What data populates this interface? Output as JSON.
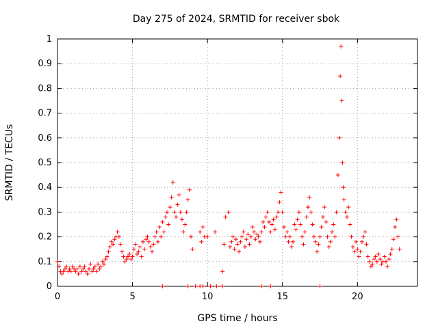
{
  "chart_data": {
    "type": "scatter",
    "title": "Day 275 of 2024, SRMTID for receiver sbok",
    "xlabel": "GPS time / hours",
    "ylabel": "SRMTID / TECUs",
    "xlim": [
      0,
      24
    ],
    "ylim": [
      0,
      1
    ],
    "xticks": [
      0,
      5,
      10,
      15,
      20
    ],
    "yticks": [
      0,
      0.1,
      0.2,
      0.3,
      0.4,
      0.5,
      0.6,
      0.7,
      0.8,
      0.9,
      1
    ],
    "ytick_labels": [
      "0",
      "0.1",
      "0.2",
      "0.3",
      "0.4",
      "0.5",
      "0.6",
      "0.7",
      "0.8",
      "0.9",
      "1"
    ],
    "grid": true,
    "marker": "+",
    "color": "#ff0000",
    "series": [
      {
        "name": "SRMTID",
        "x": [
          0.0,
          0.1,
          0.2,
          0.3,
          0.4,
          0.5,
          0.6,
          0.7,
          0.8,
          0.9,
          1.0,
          1.1,
          1.2,
          1.3,
          1.4,
          1.5,
          1.6,
          1.7,
          1.8,
          1.9,
          2.0,
          2.1,
          2.2,
          2.3,
          2.4,
          2.5,
          2.6,
          2.7,
          2.8,
          2.9,
          3.0,
          3.1,
          3.2,
          3.3,
          3.4,
          3.5,
          3.6,
          3.7,
          3.8,
          3.9,
          4.0,
          4.1,
          4.2,
          4.3,
          4.4,
          4.5,
          4.6,
          4.7,
          4.8,
          4.9,
          5.0,
          5.1,
          5.2,
          5.3,
          5.4,
          5.5,
          5.6,
          5.7,
          5.8,
          5.9,
          6.0,
          6.1,
          6.2,
          6.3,
          6.4,
          6.5,
          6.6,
          6.7,
          6.8,
          6.9,
          7.0,
          7.1,
          7.2,
          7.3,
          7.4,
          7.5,
          7.6,
          7.7,
          7.8,
          7.9,
          8.0,
          8.1,
          8.2,
          8.3,
          8.4,
          8.5,
          8.6,
          8.7,
          8.8,
          8.9,
          9.0,
          9.5,
          9.6,
          9.7,
          9.8,
          10.0,
          10.5,
          11.0,
          11.1,
          11.2,
          11.4,
          11.5,
          11.6,
          11.7,
          11.8,
          11.9,
          12.0,
          12.1,
          12.2,
          12.3,
          12.4,
          12.5,
          12.6,
          12.7,
          12.8,
          12.9,
          13.0,
          13.1,
          13.2,
          13.3,
          13.4,
          13.5,
          13.6,
          13.7,
          13.8,
          13.9,
          14.0,
          14.1,
          14.2,
          14.3,
          14.4,
          14.5,
          14.6,
          14.7,
          14.8,
          14.9,
          15.0,
          15.1,
          15.2,
          15.3,
          15.4,
          15.5,
          15.6,
          15.7,
          15.8,
          15.9,
          16.0,
          16.1,
          16.2,
          16.3,
          16.4,
          16.5,
          16.6,
          16.7,
          16.8,
          16.9,
          17.0,
          17.1,
          17.2,
          17.3,
          17.4,
          17.5,
          17.6,
          17.7,
          17.8,
          17.9,
          18.0,
          18.1,
          18.2,
          18.3,
          18.4,
          18.5,
          18.6,
          18.7,
          18.8,
          18.85,
          18.9,
          18.95,
          19.0,
          19.05,
          19.1,
          19.2,
          19.3,
          19.4,
          19.5,
          19.6,
          19.7,
          19.8,
          19.9,
          20.0,
          20.1,
          20.2,
          20.3,
          20.4,
          20.5,
          20.6,
          20.7,
          20.8,
          20.9,
          21.0,
          21.1,
          21.2,
          21.3,
          21.4,
          21.5,
          21.6,
          21.7,
          21.8,
          21.9,
          22.0,
          22.1,
          22.2,
          22.3,
          22.4,
          22.5,
          22.6,
          22.7,
          22.8,
          7.0,
          8.7,
          9.2,
          9.5,
          9.7,
          10.2,
          10.6,
          11.0,
          13.6,
          14.2,
          17.5
        ],
        "y": [
          0.1,
          0.08,
          0.06,
          0.05,
          0.06,
          0.07,
          0.08,
          0.06,
          0.07,
          0.06,
          0.08,
          0.07,
          0.06,
          0.07,
          0.05,
          0.08,
          0.06,
          0.07,
          0.08,
          0.06,
          0.05,
          0.07,
          0.09,
          0.06,
          0.07,
          0.08,
          0.06,
          0.09,
          0.07,
          0.08,
          0.1,
          0.09,
          0.11,
          0.12,
          0.14,
          0.16,
          0.18,
          0.17,
          0.19,
          0.2,
          0.22,
          0.2,
          0.17,
          0.14,
          0.12,
          0.1,
          0.11,
          0.12,
          0.13,
          0.11,
          0.12,
          0.15,
          0.17,
          0.13,
          0.14,
          0.16,
          0.12,
          0.18,
          0.15,
          0.19,
          0.2,
          0.18,
          0.16,
          0.14,
          0.17,
          0.2,
          0.22,
          0.18,
          0.24,
          0.2,
          0.26,
          0.22,
          0.28,
          0.3,
          0.25,
          0.32,
          0.36,
          0.42,
          0.3,
          0.28,
          0.33,
          0.37,
          0.3,
          0.27,
          0.22,
          0.25,
          0.3,
          0.35,
          0.39,
          0.2,
          0.15,
          0.22,
          0.18,
          0.24,
          0.2,
          0.2,
          0.22,
          0.06,
          0.17,
          0.28,
          0.3,
          0.16,
          0.18,
          0.2,
          0.15,
          0.19,
          0.17,
          0.14,
          0.18,
          0.2,
          0.22,
          0.16,
          0.19,
          0.21,
          0.17,
          0.2,
          0.24,
          0.22,
          0.19,
          0.21,
          0.2,
          0.18,
          0.22,
          0.26,
          0.24,
          0.28,
          0.3,
          0.26,
          0.22,
          0.25,
          0.27,
          0.23,
          0.28,
          0.3,
          0.34,
          0.38,
          0.3,
          0.24,
          0.2,
          0.22,
          0.18,
          0.2,
          0.16,
          0.18,
          0.25,
          0.23,
          0.27,
          0.3,
          0.25,
          0.2,
          0.17,
          0.22,
          0.28,
          0.32,
          0.36,
          0.3,
          0.25,
          0.2,
          0.18,
          0.14,
          0.17,
          0.2,
          0.24,
          0.28,
          0.32,
          0.26,
          0.2,
          0.16,
          0.18,
          0.22,
          0.25,
          0.2,
          0.3,
          0.45,
          0.6,
          0.85,
          0.97,
          0.75,
          0.5,
          0.4,
          0.35,
          0.3,
          0.28,
          0.32,
          0.25,
          0.2,
          0.16,
          0.14,
          0.18,
          0.15,
          0.12,
          0.14,
          0.18,
          0.2,
          0.22,
          0.17,
          0.12,
          0.1,
          0.08,
          0.09,
          0.11,
          0.12,
          0.1,
          0.13,
          0.11,
          0.09,
          0.1,
          0.12,
          0.1,
          0.08,
          0.11,
          0.13,
          0.15,
          0.19,
          0.24,
          0.27,
          0.2,
          0.15,
          0,
          0,
          0,
          0,
          0,
          0,
          0,
          0,
          0,
          0,
          0
        ]
      }
    ]
  }
}
